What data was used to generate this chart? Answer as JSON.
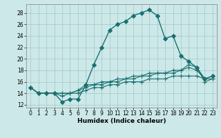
{
  "title": "",
  "xlabel": "Humidex (Indice chaleur)",
  "bg_color": "#cce8e8",
  "grid_color": "#aacccc",
  "line_color": "#1a7070",
  "xlim": [
    -0.5,
    23.5
  ],
  "ylim": [
    11.5,
    29.5
  ],
  "xticks": [
    0,
    1,
    2,
    3,
    4,
    5,
    6,
    7,
    8,
    9,
    10,
    11,
    12,
    13,
    14,
    15,
    16,
    17,
    18,
    19,
    20,
    21,
    22,
    23
  ],
  "yticks": [
    12,
    14,
    16,
    18,
    20,
    22,
    24,
    26,
    28
  ],
  "lines": [
    {
      "x": [
        0,
        1,
        2,
        3,
        4,
        5,
        6,
        7,
        8,
        9,
        10,
        11,
        12,
        13,
        14,
        15,
        16,
        17,
        18,
        19,
        20,
        21,
        22,
        23
      ],
      "y": [
        15,
        14,
        14,
        14,
        12.5,
        13,
        13,
        15.5,
        19,
        22,
        25,
        26,
        26.5,
        27.5,
        28,
        28.5,
        27.5,
        23.5,
        24,
        20.5,
        19.5,
        18.5,
        16.5,
        17
      ],
      "marker": "D",
      "markersize": 3,
      "lw": 1.0
    },
    {
      "x": [
        0,
        1,
        2,
        3,
        4,
        5,
        6,
        7,
        8,
        9,
        10,
        11,
        12,
        13,
        14,
        15,
        16,
        17,
        18,
        19,
        20,
        21,
        22,
        23
      ],
      "y": [
        15,
        14,
        14,
        14,
        14,
        14,
        14.5,
        15.5,
        15.5,
        16,
        16,
        16.5,
        16.5,
        17,
        17,
        17.5,
        17.5,
        17.5,
        18,
        18,
        19,
        18.5,
        16,
        16.5
      ],
      "marker": "+",
      "markersize": 5,
      "lw": 0.8
    },
    {
      "x": [
        0,
        1,
        2,
        3,
        4,
        5,
        6,
        7,
        8,
        9,
        10,
        11,
        12,
        13,
        14,
        15,
        16,
        17,
        18,
        19,
        20,
        21,
        22,
        23
      ],
      "y": [
        15,
        14,
        14,
        14,
        14,
        14,
        14.5,
        15,
        15.5,
        15.5,
        16,
        16,
        16.5,
        16.5,
        17,
        17,
        17.5,
        17.5,
        17.5,
        18,
        18.5,
        18,
        16.5,
        17
      ],
      "marker": "+",
      "markersize": 5,
      "lw": 0.8
    },
    {
      "x": [
        0,
        1,
        2,
        3,
        4,
        5,
        6,
        7,
        8,
        9,
        10,
        11,
        12,
        13,
        14,
        15,
        16,
        17,
        18,
        19,
        20,
        21,
        22,
        23
      ],
      "y": [
        15,
        14,
        14,
        14,
        13.5,
        14,
        14,
        14.5,
        15,
        15,
        15.5,
        15.5,
        16,
        16,
        16,
        16.5,
        16.5,
        16.5,
        17,
        17,
        17,
        17,
        16.5,
        16.5
      ],
      "marker": "+",
      "markersize": 5,
      "lw": 0.8
    }
  ]
}
